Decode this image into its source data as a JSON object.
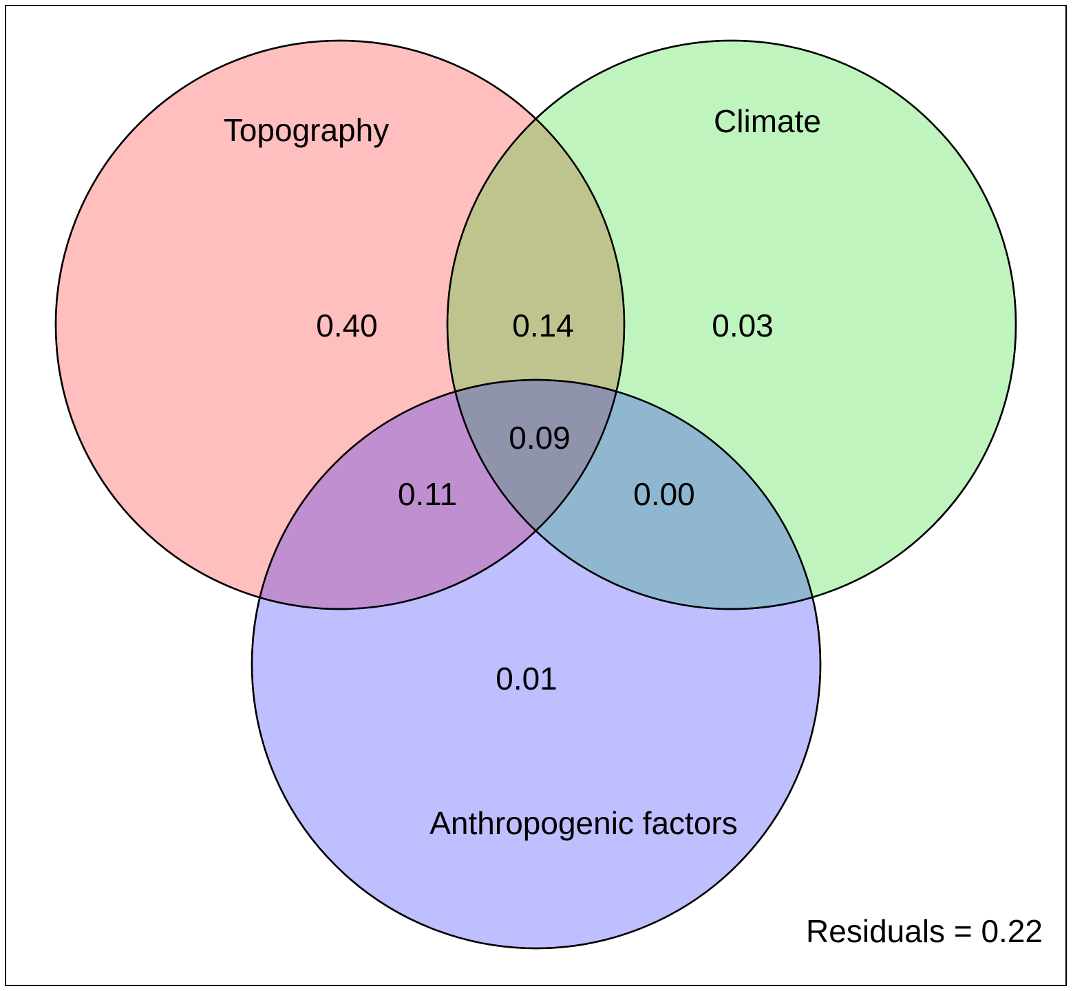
{
  "sets": [
    {
      "label": "Topography"
    },
    {
      "label": "Climate"
    },
    {
      "label": "Anthropogenic factors"
    }
  ],
  "regions": [
    {
      "label": "0.40"
    },
    {
      "label": "0.14"
    },
    {
      "label": "0.03"
    },
    {
      "label": "0.09"
    },
    {
      "label": "0.11"
    },
    {
      "label": "0.00"
    },
    {
      "label": "0.01"
    }
  ],
  "residuals": "Residuals = 0.22"
}
